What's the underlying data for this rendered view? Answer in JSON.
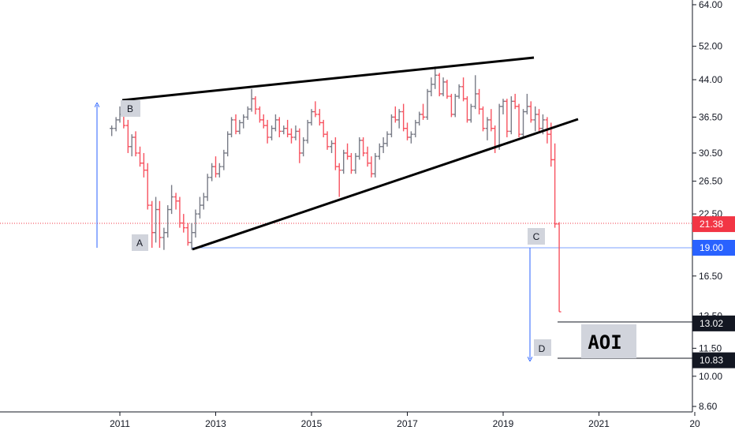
{
  "chart_data": {
    "type": "ohlc",
    "x_axis": {
      "ticks": [
        "2011",
        "2013",
        "2015",
        "2017",
        "2019",
        "2021",
        "20"
      ]
    },
    "y_axis": {
      "scale": "log",
      "ticks": [
        "64.00",
        "52.00",
        "44.00",
        "36.50",
        "30.50",
        "26.50",
        "22.50",
        "19.00",
        "16.50",
        "13.50",
        "11.50",
        "10.00",
        "8.60"
      ]
    },
    "price_tags": [
      {
        "label": "21.38",
        "value": 21.38,
        "color": "#f23645"
      },
      {
        "label": "19.00",
        "value": 19.0,
        "color": "#2962ff"
      },
      {
        "label": "13.02",
        "value": 13.02,
        "color": "#131722"
      },
      {
        "label": "10.83",
        "value": 10.83,
        "color": "#131722"
      }
    ],
    "annotations": {
      "points": [
        "A",
        "B",
        "C",
        "D"
      ],
      "zone_label": "AOI"
    },
    "bar_colors": {
      "up": "#787b86",
      "down": "#f7525f"
    },
    "series": [
      {
        "bars": [
          [
            2010.83,
            34.5,
            35.0,
            33.2,
            34.5
          ],
          [
            2010.92,
            34.5,
            36.5,
            34.0,
            36.0
          ],
          [
            2011.0,
            36.0,
            38.5,
            35.5,
            37.0
          ],
          [
            2011.08,
            37.0,
            39.5,
            34.5,
            35.0
          ],
          [
            2011.17,
            35.0,
            36.0,
            30.5,
            31.5
          ],
          [
            2011.25,
            31.5,
            33.5,
            30.0,
            33.0
          ],
          [
            2011.33,
            33.0,
            34.0,
            30.0,
            30.5
          ],
          [
            2011.42,
            30.5,
            31.5,
            28.5,
            29.0
          ],
          [
            2011.5,
            29.0,
            30.5,
            27.0,
            28.0
          ],
          [
            2011.58,
            28.0,
            29.0,
            23.0,
            23.5
          ],
          [
            2011.67,
            23.5,
            24.0,
            19.0,
            20.5
          ],
          [
            2011.75,
            20.5,
            24.5,
            19.5,
            23.0
          ],
          [
            2011.83,
            23.0,
            24.0,
            19.0,
            20.0
          ],
          [
            2011.92,
            20.0,
            21.0,
            18.8,
            20.5
          ],
          [
            2012.0,
            20.5,
            23.5,
            20.0,
            23.0
          ],
          [
            2012.08,
            23.0,
            26.0,
            22.5,
            24.5
          ],
          [
            2012.17,
            24.5,
            25.0,
            23.0,
            24.0
          ],
          [
            2012.25,
            24.0,
            24.5,
            21.0,
            21.5
          ],
          [
            2012.33,
            21.5,
            22.5,
            20.5,
            21.0
          ],
          [
            2012.42,
            21.0,
            21.5,
            19.2,
            19.5
          ],
          [
            2012.5,
            19.5,
            21.5,
            18.8,
            20.5
          ],
          [
            2012.58,
            20.5,
            23.0,
            20.0,
            22.5
          ],
          [
            2012.67,
            22.5,
            24.5,
            22.0,
            23.5
          ],
          [
            2012.75,
            23.5,
            25.0,
            23.0,
            24.5
          ],
          [
            2012.83,
            24.5,
            27.5,
            24.0,
            27.0
          ],
          [
            2012.92,
            27.0,
            29.0,
            26.5,
            28.5
          ],
          [
            2013.0,
            28.5,
            30.0,
            27.0,
            27.5
          ],
          [
            2013.08,
            27.5,
            29.0,
            27.0,
            28.5
          ],
          [
            2013.17,
            28.5,
            31.0,
            28.0,
            30.5
          ],
          [
            2013.25,
            30.5,
            34.0,
            30.0,
            33.5
          ],
          [
            2013.33,
            33.5,
            36.5,
            33.0,
            36.0
          ],
          [
            2013.42,
            36.0,
            37.0,
            33.5,
            34.0
          ],
          [
            2013.5,
            34.0,
            36.0,
            33.5,
            35.5
          ],
          [
            2013.58,
            35.5,
            37.0,
            34.5,
            36.5
          ],
          [
            2013.67,
            36.5,
            38.5,
            36.0,
            38.0
          ],
          [
            2013.75,
            38.0,
            42.0,
            37.5,
            40.0
          ],
          [
            2013.83,
            40.0,
            40.5,
            37.0,
            38.0
          ],
          [
            2013.92,
            38.0,
            38.5,
            35.5,
            36.0
          ],
          [
            2014.0,
            36.0,
            37.0,
            34.5,
            35.0
          ],
          [
            2014.08,
            35.0,
            36.0,
            32.0,
            33.0
          ],
          [
            2014.17,
            33.0,
            35.0,
            32.5,
            34.5
          ],
          [
            2014.25,
            34.5,
            37.0,
            34.0,
            36.0
          ],
          [
            2014.33,
            36.0,
            36.5,
            33.0,
            34.0
          ],
          [
            2014.42,
            34.0,
            35.0,
            33.5,
            34.5
          ],
          [
            2014.5,
            34.5,
            36.0,
            33.0,
            33.5
          ],
          [
            2014.58,
            33.5,
            34.5,
            32.0,
            33.0
          ],
          [
            2014.67,
            33.0,
            35.0,
            32.5,
            34.0
          ],
          [
            2014.75,
            34.0,
            34.5,
            29.0,
            30.5
          ],
          [
            2014.83,
            30.5,
            33.0,
            30.0,
            32.5
          ],
          [
            2014.92,
            32.5,
            36.0,
            32.0,
            35.5
          ],
          [
            2015.0,
            35.5,
            38.0,
            35.0,
            37.5
          ],
          [
            2015.08,
            37.5,
            39.5,
            36.5,
            37.0
          ],
          [
            2015.17,
            37.0,
            38.0,
            35.0,
            35.5
          ],
          [
            2015.25,
            35.5,
            36.0,
            33.0,
            33.5
          ],
          [
            2015.33,
            33.5,
            34.0,
            31.0,
            31.5
          ],
          [
            2015.42,
            31.5,
            32.5,
            30.5,
            32.0
          ],
          [
            2015.5,
            32.0,
            33.0,
            28.0,
            28.5
          ],
          [
            2015.58,
            28.5,
            29.0,
            24.5,
            28.0
          ],
          [
            2015.67,
            28.0,
            31.0,
            27.5,
            30.5
          ],
          [
            2015.75,
            30.5,
            32.0,
            29.5,
            30.0
          ],
          [
            2015.83,
            30.0,
            30.5,
            27.5,
            28.0
          ],
          [
            2015.92,
            28.0,
            30.5,
            27.5,
            30.0
          ],
          [
            2016.0,
            30.0,
            33.0,
            29.5,
            32.5
          ],
          [
            2016.08,
            32.5,
            33.0,
            30.0,
            30.5
          ],
          [
            2016.17,
            30.5,
            31.5,
            28.5,
            29.0
          ],
          [
            2016.25,
            29.0,
            30.0,
            27.0,
            27.5
          ],
          [
            2016.33,
            27.5,
            30.5,
            27.0,
            30.0
          ],
          [
            2016.42,
            30.0,
            32.0,
            29.5,
            31.5
          ],
          [
            2016.5,
            31.5,
            33.0,
            30.5,
            32.0
          ],
          [
            2016.58,
            32.0,
            34.0,
            31.5,
            33.5
          ],
          [
            2016.67,
            33.5,
            37.0,
            33.0,
            36.5
          ],
          [
            2016.75,
            36.5,
            38.5,
            35.5,
            36.0
          ],
          [
            2016.83,
            36.0,
            38.0,
            34.5,
            37.5
          ],
          [
            2016.92,
            37.5,
            39.0,
            34.0,
            34.5
          ],
          [
            2017.0,
            34.5,
            35.5,
            32.5,
            33.0
          ],
          [
            2017.08,
            33.0,
            34.0,
            32.0,
            33.5
          ],
          [
            2017.17,
            33.5,
            36.0,
            33.0,
            35.5
          ],
          [
            2017.25,
            35.5,
            37.5,
            35.0,
            37.0
          ],
          [
            2017.33,
            37.0,
            39.0,
            36.0,
            36.5
          ],
          [
            2017.42,
            36.5,
            42.0,
            36.0,
            41.5
          ],
          [
            2017.5,
            41.5,
            44.5,
            40.5,
            43.0
          ],
          [
            2017.58,
            43.0,
            47.0,
            42.0,
            45.0
          ],
          [
            2017.67,
            45.0,
            45.5,
            40.5,
            41.0
          ],
          [
            2017.75,
            41.0,
            44.5,
            40.5,
            43.5
          ],
          [
            2017.83,
            43.5,
            44.0,
            40.0,
            40.5
          ],
          [
            2017.92,
            40.5,
            41.0,
            36.5,
            37.0
          ],
          [
            2018.0,
            37.0,
            41.0,
            36.5,
            40.5
          ],
          [
            2018.08,
            40.5,
            43.0,
            40.0,
            42.5
          ],
          [
            2018.17,
            42.5,
            44.5,
            39.5,
            40.0
          ],
          [
            2018.25,
            40.0,
            40.5,
            35.5,
            36.0
          ],
          [
            2018.33,
            36.0,
            39.0,
            35.5,
            38.5
          ],
          [
            2018.42,
            38.5,
            45.0,
            38.0,
            41.0
          ],
          [
            2018.5,
            41.0,
            42.0,
            37.0,
            38.0
          ],
          [
            2018.58,
            38.0,
            38.5,
            34.0,
            34.5
          ],
          [
            2018.67,
            34.5,
            36.5,
            32.5,
            36.0
          ],
          [
            2018.75,
            36.0,
            38.0,
            34.0,
            34.5
          ],
          [
            2018.83,
            34.5,
            35.0,
            30.5,
            31.5
          ],
          [
            2018.92,
            31.5,
            39.0,
            31.0,
            38.5
          ],
          [
            2019.0,
            38.5,
            40.0,
            37.0,
            39.5
          ],
          [
            2019.08,
            39.5,
            40.0,
            33.0,
            34.0
          ],
          [
            2019.17,
            34.0,
            40.5,
            33.5,
            39.5
          ],
          [
            2019.25,
            39.5,
            41.0,
            38.0,
            38.5
          ],
          [
            2019.33,
            38.5,
            39.0,
            33.0,
            33.5
          ],
          [
            2019.42,
            33.5,
            38.0,
            33.0,
            37.5
          ],
          [
            2019.5,
            37.5,
            41.0,
            37.0,
            38.5
          ],
          [
            2019.58,
            38.5,
            39.5,
            35.5,
            36.0
          ],
          [
            2019.67,
            36.0,
            38.5,
            34.0,
            37.0
          ],
          [
            2019.75,
            37.0,
            38.0,
            34.0,
            34.5
          ],
          [
            2019.83,
            34.5,
            37.0,
            33.5,
            36.0
          ],
          [
            2019.92,
            36.0,
            36.5,
            32.0,
            33.5
          ],
          [
            2020.0,
            33.5,
            35.5,
            28.5,
            29.5
          ],
          [
            2020.08,
            29.5,
            32.0,
            21.0,
            21.4
          ],
          [
            2020.17,
            21.4,
            21.6,
            13.8,
            13.8
          ]
        ]
      }
    ]
  }
}
